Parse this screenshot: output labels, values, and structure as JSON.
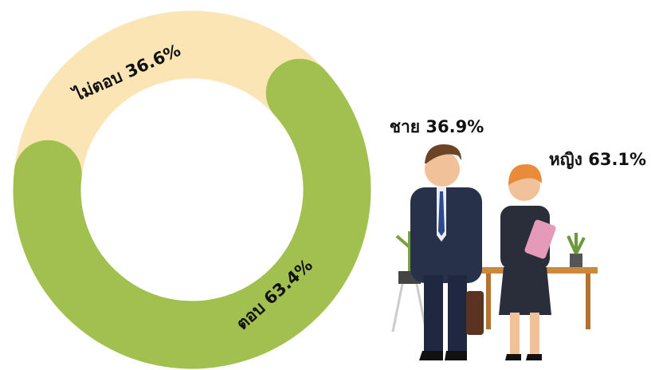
{
  "chart_data": [
    {
      "type": "donut",
      "categories": [
        "ตอบ",
        "ไม่ตอบ"
      ],
      "values": [
        63.4,
        36.6
      ],
      "value_labels": [
        "63.4%",
        "36.6%"
      ],
      "colors": [
        "#a1c04f",
        "#fbe5b5"
      ]
    },
    {
      "type": "pictogram",
      "categories": [
        "ชาย",
        "หญิง"
      ],
      "values": [
        36.9,
        63.1
      ],
      "value_labels": [
        "36.9%",
        "63.1%"
      ]
    }
  ]
}
